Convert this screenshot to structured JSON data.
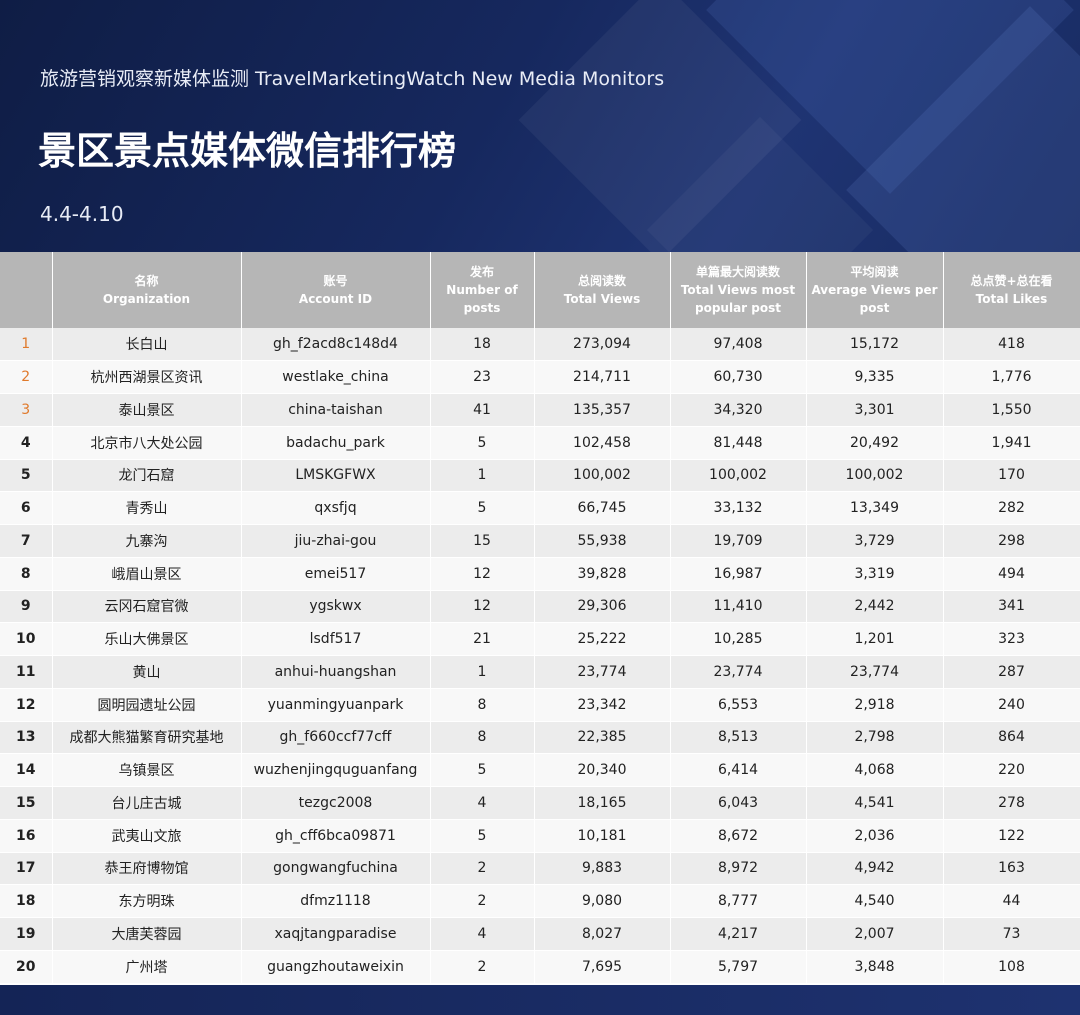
{
  "header": {
    "subtitle": "旅游营销观察新媒体监测 TravelMarketingWatch New Media Monitors",
    "title": "景区景点媒体微信排行榜",
    "date_range": "4.4-4.10"
  },
  "table": {
    "columns": [
      {
        "key": "rank",
        "lines": [
          ""
        ]
      },
      {
        "key": "name",
        "lines": [
          "名称",
          "Organization"
        ]
      },
      {
        "key": "account",
        "lines": [
          "账号",
          "Account ID"
        ]
      },
      {
        "key": "posts",
        "lines": [
          "发布",
          "Number of",
          "posts"
        ]
      },
      {
        "key": "total_views",
        "lines": [
          "总阅读数",
          "Total Views"
        ]
      },
      {
        "key": "max_views",
        "lines": [
          "单篇最大阅读数",
          "Total Views most",
          "popular post"
        ]
      },
      {
        "key": "avg_views",
        "lines": [
          "平均阅读",
          "Average Views per",
          "post"
        ]
      },
      {
        "key": "likes",
        "lines": [
          "总点赞+总在看",
          "Total Likes"
        ]
      }
    ],
    "rows": [
      {
        "rank": "1",
        "name": "长白山",
        "account": "gh_f2acd8c148d4",
        "posts": "18",
        "total_views": "273,094",
        "max_views": "97,408",
        "avg_views": "15,172",
        "likes": "418"
      },
      {
        "rank": "2",
        "name": "杭州西湖景区资讯",
        "account": "westlake_china",
        "posts": "23",
        "total_views": "214,711",
        "max_views": "60,730",
        "avg_views": "9,335",
        "likes": "1,776"
      },
      {
        "rank": "3",
        "name": "泰山景区",
        "account": "china-taishan",
        "posts": "41",
        "total_views": "135,357",
        "max_views": "34,320",
        "avg_views": "3,301",
        "likes": "1,550"
      },
      {
        "rank": "4",
        "name": "北京市八大处公园",
        "account": "badachu_park",
        "posts": "5",
        "total_views": "102,458",
        "max_views": "81,448",
        "avg_views": "20,492",
        "likes": "1,941"
      },
      {
        "rank": "5",
        "name": "龙门石窟",
        "account": "LMSKGFWX",
        "posts": "1",
        "total_views": "100,002",
        "max_views": "100,002",
        "avg_views": "100,002",
        "likes": "170"
      },
      {
        "rank": "6",
        "name": "青秀山",
        "account": "qxsfjq",
        "posts": "5",
        "total_views": "66,745",
        "max_views": "33,132",
        "avg_views": "13,349",
        "likes": "282"
      },
      {
        "rank": "7",
        "name": "九寨沟",
        "account": "jiu-zhai-gou",
        "posts": "15",
        "total_views": "55,938",
        "max_views": "19,709",
        "avg_views": "3,729",
        "likes": "298"
      },
      {
        "rank": "8",
        "name": "峨眉山景区",
        "account": "emei517",
        "posts": "12",
        "total_views": "39,828",
        "max_views": "16,987",
        "avg_views": "3,319",
        "likes": "494"
      },
      {
        "rank": "9",
        "name": "云冈石窟官微",
        "account": "ygskwx",
        "posts": "12",
        "total_views": "29,306",
        "max_views": "11,410",
        "avg_views": "2,442",
        "likes": "341"
      },
      {
        "rank": "10",
        "name": "乐山大佛景区",
        "account": "lsdf517",
        "posts": "21",
        "total_views": "25,222",
        "max_views": "10,285",
        "avg_views": "1,201",
        "likes": "323"
      },
      {
        "rank": "11",
        "name": "黄山",
        "account": "anhui-huangshan",
        "posts": "1",
        "total_views": "23,774",
        "max_views": "23,774",
        "avg_views": "23,774",
        "likes": "287"
      },
      {
        "rank": "12",
        "name": "圆明园遗址公园",
        "account": "yuanmingyuanpark",
        "posts": "8",
        "total_views": "23,342",
        "max_views": "6,553",
        "avg_views": "2,918",
        "likes": "240"
      },
      {
        "rank": "13",
        "name": "成都大熊猫繁育研究基地",
        "account": "gh_f660ccf77cff",
        "posts": "8",
        "total_views": "22,385",
        "max_views": "8,513",
        "avg_views": "2,798",
        "likes": "864"
      },
      {
        "rank": "14",
        "name": "乌镇景区",
        "account": "wuzhenjingquguanfang",
        "posts": "5",
        "total_views": "20,340",
        "max_views": "6,414",
        "avg_views": "4,068",
        "likes": "220"
      },
      {
        "rank": "15",
        "name": "台儿庄古城",
        "account": "tezgc2008",
        "posts": "4",
        "total_views": "18,165",
        "max_views": "6,043",
        "avg_views": "4,541",
        "likes": "278"
      },
      {
        "rank": "16",
        "name": "武夷山文旅",
        "account": "gh_cff6bca09871",
        "posts": "5",
        "total_views": "10,181",
        "max_views": "8,672",
        "avg_views": "2,036",
        "likes": "122"
      },
      {
        "rank": "17",
        "name": "恭王府博物馆",
        "account": "gongwangfuchina",
        "posts": "2",
        "total_views": "9,883",
        "max_views": "8,972",
        "avg_views": "4,942",
        "likes": "163"
      },
      {
        "rank": "18",
        "name": "东方明珠",
        "account": "dfmz1118",
        "posts": "2",
        "total_views": "9,080",
        "max_views": "8,777",
        "avg_views": "4,540",
        "likes": "44"
      },
      {
        "rank": "19",
        "name": "大唐芙蓉园",
        "account": "xaqjtangparadise",
        "posts": "4",
        "total_views": "8,027",
        "max_views": "4,217",
        "avg_views": "2,007",
        "likes": "73"
      },
      {
        "rank": "20",
        "name": "广州塔",
        "account": "guangzhoutaweixin",
        "posts": "2",
        "total_views": "7,695",
        "max_views": "5,797",
        "avg_views": "3,848",
        "likes": "108"
      }
    ]
  },
  "colors": {
    "header_bg": "#16285e",
    "table_head_bg": "#b6b6b6",
    "top_rank_accent": "#e07a2c"
  }
}
